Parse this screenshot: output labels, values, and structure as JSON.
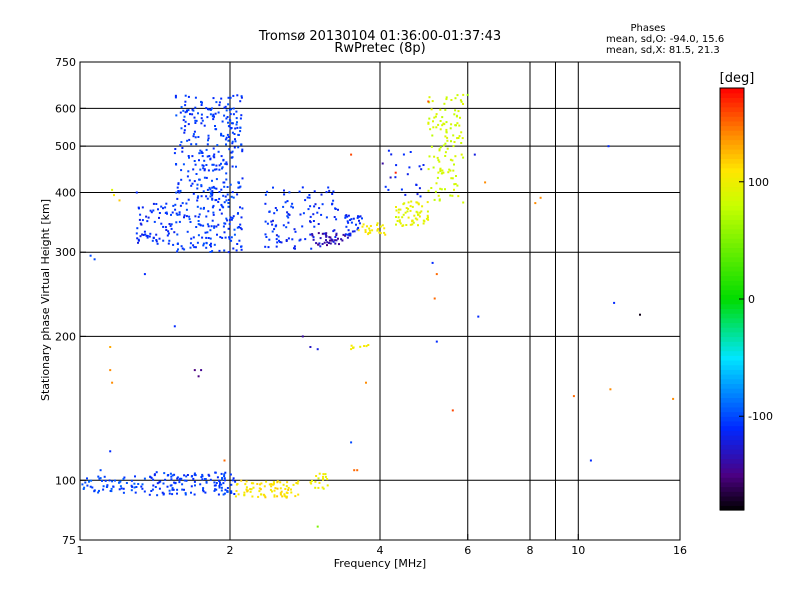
{
  "chart_data": {
    "type": "scatter",
    "title": "Tromsø 20130104 01:36:00-01:37:43",
    "subtitle": "RwPretec (8p)",
    "xlabel": "Frequency [MHz]",
    "ylabel": "Stationary phase Virtual Height [km]",
    "x_scale": "log",
    "y_scale": "log",
    "xlim": [
      1,
      16
    ],
    "ylim": [
      75,
      750
    ],
    "x_ticks": [
      1,
      2,
      4,
      6,
      8,
      10,
      16
    ],
    "x_tick_labels": [
      "1",
      "2",
      "4",
      "6",
      "8",
      "10",
      "16"
    ],
    "y_ticks": [
      75,
      100,
      200,
      300,
      400,
      500,
      600,
      750
    ],
    "y_tick_labels": [
      "75",
      "100",
      "200",
      "300",
      "400",
      "500",
      "600",
      "750"
    ],
    "grid": true,
    "phase_box": {
      "title": "Phases",
      "line1": "mean, sd,O:  -94.0, 15.6",
      "line2": "mean, sd,X:  81.5, 21.3"
    },
    "colorbar": {
      "label": "[deg]",
      "range": [
        -180,
        180
      ],
      "ticks": [
        100,
        0,
        -100
      ],
      "tick_labels": [
        "100",
        "0",
        "-100"
      ]
    },
    "clusters": [
      {
        "id": "E-O-low",
        "phase": -100,
        "count": 60,
        "x_range": [
          1.0,
          1.35
        ],
        "y_range": [
          94,
          102
        ]
      },
      {
        "id": "E-O-mid",
        "phase": -105,
        "count": 130,
        "x_range": [
          1.38,
          2.05
        ],
        "y_range": [
          93,
          104
        ]
      },
      {
        "id": "E-X",
        "phase": 110,
        "count": 80,
        "x_range": [
          2.05,
          2.75
        ],
        "y_range": [
          92,
          100
        ]
      },
      {
        "id": "E-X-2",
        "phase": 100,
        "count": 20,
        "x_range": [
          2.9,
          3.15
        ],
        "y_range": [
          96,
          104
        ]
      },
      {
        "id": "F-O-main",
        "phase": -105,
        "count": 420,
        "x_range": [
          1.55,
          2.12
        ],
        "y_range": [
          300,
          640
        ]
      },
      {
        "id": "F-O-low",
        "phase": -110,
        "count": 70,
        "x_range": [
          1.3,
          1.55
        ],
        "y_range": [
          310,
          380
        ]
      },
      {
        "id": "F-O-2",
        "phase": -110,
        "count": 110,
        "x_range": [
          2.35,
          3.3
        ],
        "y_range": [
          305,
          410
        ]
      },
      {
        "id": "F-O-violet",
        "phase": -140,
        "count": 40,
        "x_range": [
          2.9,
          3.5
        ],
        "y_range": [
          310,
          330
        ]
      },
      {
        "id": "F-O-3",
        "phase": -110,
        "count": 30,
        "x_range": [
          3.4,
          3.7
        ],
        "y_range": [
          325,
          360
        ]
      },
      {
        "id": "F-X-1",
        "phase": 105,
        "count": 25,
        "x_range": [
          3.6,
          4.1
        ],
        "y_range": [
          325,
          345
        ]
      },
      {
        "id": "F-X-2",
        "phase": 95,
        "count": 60,
        "x_range": [
          4.3,
          5.0
        ],
        "y_range": [
          340,
          385
        ]
      },
      {
        "id": "F-X-3",
        "phase": 85,
        "count": 120,
        "x_range": [
          5.0,
          5.9
        ],
        "y_range": [
          380,
          640
        ]
      },
      {
        "id": "F-O-4",
        "phase": -115,
        "count": 20,
        "x_range": [
          4.05,
          4.9
        ],
        "y_range": [
          390,
          490
        ]
      },
      {
        "id": "mid-X",
        "phase": 105,
        "count": 8,
        "x_range": [
          3.5,
          3.8
        ],
        "y_range": [
          188,
          192
        ]
      }
    ],
    "points": [
      {
        "x": 1.3,
        "y": 400,
        "phase": -110
      },
      {
        "x": 1.35,
        "y": 270,
        "phase": -110
      },
      {
        "x": 1.05,
        "y": 295,
        "phase": -100
      },
      {
        "x": 1.07,
        "y": 290,
        "phase": -100
      },
      {
        "x": 1.1,
        "y": 105,
        "phase": -100
      },
      {
        "x": 1.15,
        "y": 115,
        "phase": -110
      },
      {
        "x": 1.15,
        "y": 190,
        "phase": 130
      },
      {
        "x": 1.15,
        "y": 170,
        "phase": 140
      },
      {
        "x": 1.16,
        "y": 160,
        "phase": 140
      },
      {
        "x": 1.16,
        "y": 405,
        "phase": 90
      },
      {
        "x": 1.17,
        "y": 395,
        "phase": 110
      },
      {
        "x": 1.2,
        "y": 385,
        "phase": 120
      },
      {
        "x": 1.55,
        "y": 210,
        "phase": -110
      },
      {
        "x": 1.7,
        "y": 170,
        "phase": -150
      },
      {
        "x": 1.75,
        "y": 170,
        "phase": -145
      },
      {
        "x": 1.73,
        "y": 165,
        "phase": -150
      },
      {
        "x": 1.95,
        "y": 110,
        "phase": 150
      },
      {
        "x": 2.8,
        "y": 200,
        "phase": -140
      },
      {
        "x": 2.9,
        "y": 190,
        "phase": -130
      },
      {
        "x": 3.0,
        "y": 188,
        "phase": -120
      },
      {
        "x": 2.8,
        "y": 410,
        "phase": -110
      },
      {
        "x": 3.5,
        "y": 480,
        "phase": 160
      },
      {
        "x": 3.5,
        "y": 120,
        "phase": -100
      },
      {
        "x": 3.55,
        "y": 105,
        "phase": 150
      },
      {
        "x": 3.6,
        "y": 105,
        "phase": 150
      },
      {
        "x": 3.75,
        "y": 160,
        "phase": 140
      },
      {
        "x": 4.05,
        "y": 460,
        "phase": -140
      },
      {
        "x": 4.2,
        "y": 430,
        "phase": -130
      },
      {
        "x": 4.3,
        "y": 440,
        "phase": 170
      },
      {
        "x": 5.0,
        "y": 620,
        "phase": 160
      },
      {
        "x": 5.1,
        "y": 285,
        "phase": -110
      },
      {
        "x": 5.15,
        "y": 240,
        "phase": 150
      },
      {
        "x": 5.2,
        "y": 195,
        "phase": -110
      },
      {
        "x": 5.2,
        "y": 270,
        "phase": 150
      },
      {
        "x": 5.6,
        "y": 140,
        "phase": 160
      },
      {
        "x": 6.0,
        "y": 640,
        "phase": 60
      },
      {
        "x": 6.2,
        "y": 480,
        "phase": -120
      },
      {
        "x": 6.3,
        "y": 220,
        "phase": -110
      },
      {
        "x": 6.5,
        "y": 420,
        "phase": 140
      },
      {
        "x": 8.2,
        "y": 380,
        "phase": 140
      },
      {
        "x": 8.4,
        "y": 390,
        "phase": 140
      },
      {
        "x": 9.8,
        "y": 150,
        "phase": 150
      },
      {
        "x": 10.6,
        "y": 110,
        "phase": -110
      },
      {
        "x": 11.5,
        "y": 500,
        "phase": -110
      },
      {
        "x": 11.8,
        "y": 235,
        "phase": -110
      },
      {
        "x": 11.6,
        "y": 155,
        "phase": 140
      },
      {
        "x": 13.3,
        "y": 222,
        "phase": -175
      },
      {
        "x": 15.5,
        "y": 148,
        "phase": 140
      },
      {
        "x": 3.0,
        "y": 80,
        "phase": 50
      }
    ]
  }
}
